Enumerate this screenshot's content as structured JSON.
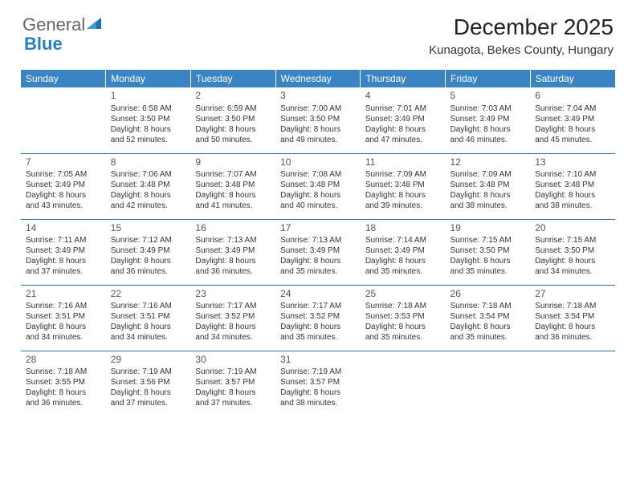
{
  "logo": {
    "text1": "General",
    "text2": "Blue"
  },
  "title": "December 2025",
  "location": "Kunagota, Bekes County, Hungary",
  "colors": {
    "header_bg": "#3b84c4",
    "header_text": "#ffffff",
    "cell_border": "#2a6fa8",
    "text": "#333333",
    "logo_accent": "#2a7fbf"
  },
  "weekdays": [
    "Sunday",
    "Monday",
    "Tuesday",
    "Wednesday",
    "Thursday",
    "Friday",
    "Saturday"
  ],
  "weeks": [
    [
      null,
      {
        "n": "1",
        "sr": "Sunrise: 6:58 AM",
        "ss": "Sunset: 3:50 PM",
        "d1": "Daylight: 8 hours",
        "d2": "and 52 minutes."
      },
      {
        "n": "2",
        "sr": "Sunrise: 6:59 AM",
        "ss": "Sunset: 3:50 PM",
        "d1": "Daylight: 8 hours",
        "d2": "and 50 minutes."
      },
      {
        "n": "3",
        "sr": "Sunrise: 7:00 AM",
        "ss": "Sunset: 3:50 PM",
        "d1": "Daylight: 8 hours",
        "d2": "and 49 minutes."
      },
      {
        "n": "4",
        "sr": "Sunrise: 7:01 AM",
        "ss": "Sunset: 3:49 PM",
        "d1": "Daylight: 8 hours",
        "d2": "and 47 minutes."
      },
      {
        "n": "5",
        "sr": "Sunrise: 7:03 AM",
        "ss": "Sunset: 3:49 PM",
        "d1": "Daylight: 8 hours",
        "d2": "and 46 minutes."
      },
      {
        "n": "6",
        "sr": "Sunrise: 7:04 AM",
        "ss": "Sunset: 3:49 PM",
        "d1": "Daylight: 8 hours",
        "d2": "and 45 minutes."
      }
    ],
    [
      {
        "n": "7",
        "sr": "Sunrise: 7:05 AM",
        "ss": "Sunset: 3:49 PM",
        "d1": "Daylight: 8 hours",
        "d2": "and 43 minutes."
      },
      {
        "n": "8",
        "sr": "Sunrise: 7:06 AM",
        "ss": "Sunset: 3:48 PM",
        "d1": "Daylight: 8 hours",
        "d2": "and 42 minutes."
      },
      {
        "n": "9",
        "sr": "Sunrise: 7:07 AM",
        "ss": "Sunset: 3:48 PM",
        "d1": "Daylight: 8 hours",
        "d2": "and 41 minutes."
      },
      {
        "n": "10",
        "sr": "Sunrise: 7:08 AM",
        "ss": "Sunset: 3:48 PM",
        "d1": "Daylight: 8 hours",
        "d2": "and 40 minutes."
      },
      {
        "n": "11",
        "sr": "Sunrise: 7:09 AM",
        "ss": "Sunset: 3:48 PM",
        "d1": "Daylight: 8 hours",
        "d2": "and 39 minutes."
      },
      {
        "n": "12",
        "sr": "Sunrise: 7:09 AM",
        "ss": "Sunset: 3:48 PM",
        "d1": "Daylight: 8 hours",
        "d2": "and 38 minutes."
      },
      {
        "n": "13",
        "sr": "Sunrise: 7:10 AM",
        "ss": "Sunset: 3:48 PM",
        "d1": "Daylight: 8 hours",
        "d2": "and 38 minutes."
      }
    ],
    [
      {
        "n": "14",
        "sr": "Sunrise: 7:11 AM",
        "ss": "Sunset: 3:49 PM",
        "d1": "Daylight: 8 hours",
        "d2": "and 37 minutes."
      },
      {
        "n": "15",
        "sr": "Sunrise: 7:12 AM",
        "ss": "Sunset: 3:49 PM",
        "d1": "Daylight: 8 hours",
        "d2": "and 36 minutes."
      },
      {
        "n": "16",
        "sr": "Sunrise: 7:13 AM",
        "ss": "Sunset: 3:49 PM",
        "d1": "Daylight: 8 hours",
        "d2": "and 36 minutes."
      },
      {
        "n": "17",
        "sr": "Sunrise: 7:13 AM",
        "ss": "Sunset: 3:49 PM",
        "d1": "Daylight: 8 hours",
        "d2": "and 35 minutes."
      },
      {
        "n": "18",
        "sr": "Sunrise: 7:14 AM",
        "ss": "Sunset: 3:49 PM",
        "d1": "Daylight: 8 hours",
        "d2": "and 35 minutes."
      },
      {
        "n": "19",
        "sr": "Sunrise: 7:15 AM",
        "ss": "Sunset: 3:50 PM",
        "d1": "Daylight: 8 hours",
        "d2": "and 35 minutes."
      },
      {
        "n": "20",
        "sr": "Sunrise: 7:15 AM",
        "ss": "Sunset: 3:50 PM",
        "d1": "Daylight: 8 hours",
        "d2": "and 34 minutes."
      }
    ],
    [
      {
        "n": "21",
        "sr": "Sunrise: 7:16 AM",
        "ss": "Sunset: 3:51 PM",
        "d1": "Daylight: 8 hours",
        "d2": "and 34 minutes."
      },
      {
        "n": "22",
        "sr": "Sunrise: 7:16 AM",
        "ss": "Sunset: 3:51 PM",
        "d1": "Daylight: 8 hours",
        "d2": "and 34 minutes."
      },
      {
        "n": "23",
        "sr": "Sunrise: 7:17 AM",
        "ss": "Sunset: 3:52 PM",
        "d1": "Daylight: 8 hours",
        "d2": "and 34 minutes."
      },
      {
        "n": "24",
        "sr": "Sunrise: 7:17 AM",
        "ss": "Sunset: 3:52 PM",
        "d1": "Daylight: 8 hours",
        "d2": "and 35 minutes."
      },
      {
        "n": "25",
        "sr": "Sunrise: 7:18 AM",
        "ss": "Sunset: 3:53 PM",
        "d1": "Daylight: 8 hours",
        "d2": "and 35 minutes."
      },
      {
        "n": "26",
        "sr": "Sunrise: 7:18 AM",
        "ss": "Sunset: 3:54 PM",
        "d1": "Daylight: 8 hours",
        "d2": "and 35 minutes."
      },
      {
        "n": "27",
        "sr": "Sunrise: 7:18 AM",
        "ss": "Sunset: 3:54 PM",
        "d1": "Daylight: 8 hours",
        "d2": "and 36 minutes."
      }
    ],
    [
      {
        "n": "28",
        "sr": "Sunrise: 7:18 AM",
        "ss": "Sunset: 3:55 PM",
        "d1": "Daylight: 8 hours",
        "d2": "and 36 minutes."
      },
      {
        "n": "29",
        "sr": "Sunrise: 7:19 AM",
        "ss": "Sunset: 3:56 PM",
        "d1": "Daylight: 8 hours",
        "d2": "and 37 minutes."
      },
      {
        "n": "30",
        "sr": "Sunrise: 7:19 AM",
        "ss": "Sunset: 3:57 PM",
        "d1": "Daylight: 8 hours",
        "d2": "and 37 minutes."
      },
      {
        "n": "31",
        "sr": "Sunrise: 7:19 AM",
        "ss": "Sunset: 3:57 PM",
        "d1": "Daylight: 8 hours",
        "d2": "and 38 minutes."
      },
      null,
      null,
      null
    ]
  ]
}
